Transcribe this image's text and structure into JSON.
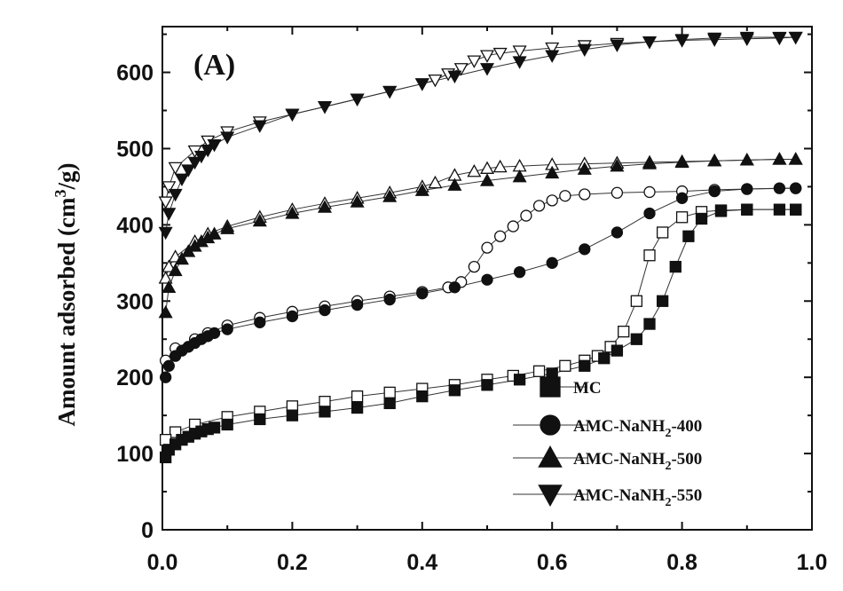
{
  "chart_data": {
    "type": "line",
    "panel_label": "(A)",
    "ylabel": "Amount adsorbed (cm",
    "ylabel_sup": "3",
    "ylabel_unit": "/g)",
    "xlabel": "",
    "xlim": [
      0.0,
      1.0
    ],
    "ylim": [
      0,
      660
    ],
    "x_ticks": [
      "0.0",
      "0.2",
      "0.4",
      "0.6",
      "0.8",
      "1.0"
    ],
    "y_ticks": [
      "0",
      "100",
      "200",
      "300",
      "400",
      "500",
      "600"
    ],
    "legend_position": "bottom-right",
    "series": [
      {
        "name": "MC",
        "name_main": "MC",
        "name_sub": "",
        "name_tail": "",
        "marker": "square",
        "adsorption": [
          [
            0.005,
            95
          ],
          [
            0.01,
            105
          ],
          [
            0.02,
            112
          ],
          [
            0.03,
            118
          ],
          [
            0.04,
            122
          ],
          [
            0.05,
            126
          ],
          [
            0.06,
            129
          ],
          [
            0.07,
            132
          ],
          [
            0.08,
            134
          ],
          [
            0.1,
            138
          ],
          [
            0.15,
            145
          ],
          [
            0.2,
            150
          ],
          [
            0.25,
            155
          ],
          [
            0.3,
            160
          ],
          [
            0.35,
            166
          ],
          [
            0.4,
            175
          ],
          [
            0.45,
            183
          ],
          [
            0.5,
            190
          ],
          [
            0.55,
            197
          ],
          [
            0.6,
            205
          ],
          [
            0.65,
            215
          ],
          [
            0.68,
            225
          ],
          [
            0.7,
            235
          ],
          [
            0.73,
            250
          ],
          [
            0.75,
            270
          ],
          [
            0.77,
            300
          ],
          [
            0.79,
            345
          ],
          [
            0.81,
            385
          ],
          [
            0.83,
            408
          ],
          [
            0.86,
            418
          ],
          [
            0.9,
            420
          ],
          [
            0.95,
            420
          ],
          [
            0.975,
            420
          ]
        ],
        "desorption": [
          [
            0.975,
            420
          ],
          [
            0.9,
            420
          ],
          [
            0.86,
            419
          ],
          [
            0.83,
            417
          ],
          [
            0.8,
            410
          ],
          [
            0.77,
            390
          ],
          [
            0.75,
            360
          ],
          [
            0.73,
            300
          ],
          [
            0.71,
            260
          ],
          [
            0.69,
            240
          ],
          [
            0.67,
            228
          ],
          [
            0.65,
            222
          ],
          [
            0.62,
            215
          ],
          [
            0.58,
            208
          ],
          [
            0.54,
            202
          ],
          [
            0.5,
            197
          ],
          [
            0.45,
            190
          ],
          [
            0.4,
            185
          ],
          [
            0.35,
            180
          ],
          [
            0.3,
            175
          ],
          [
            0.25,
            168
          ],
          [
            0.2,
            162
          ],
          [
            0.15,
            155
          ],
          [
            0.1,
            148
          ],
          [
            0.05,
            138
          ],
          [
            0.02,
            128
          ],
          [
            0.005,
            118
          ]
        ]
      },
      {
        "name": "AMC-NaNH2-400",
        "name_main": "AMC-NaNH",
        "name_sub": "2",
        "name_tail": "-400",
        "marker": "circle",
        "adsorption": [
          [
            0.005,
            200
          ],
          [
            0.01,
            215
          ],
          [
            0.02,
            228
          ],
          [
            0.03,
            235
          ],
          [
            0.04,
            240
          ],
          [
            0.05,
            245
          ],
          [
            0.06,
            250
          ],
          [
            0.07,
            254
          ],
          [
            0.08,
            258
          ],
          [
            0.1,
            263
          ],
          [
            0.15,
            272
          ],
          [
            0.2,
            280
          ],
          [
            0.25,
            288
          ],
          [
            0.3,
            295
          ],
          [
            0.35,
            302
          ],
          [
            0.4,
            310
          ],
          [
            0.45,
            318
          ],
          [
            0.5,
            328
          ],
          [
            0.55,
            338
          ],
          [
            0.6,
            350
          ],
          [
            0.65,
            368
          ],
          [
            0.7,
            390
          ],
          [
            0.75,
            415
          ],
          [
            0.8,
            435
          ],
          [
            0.85,
            444
          ],
          [
            0.9,
            447
          ],
          [
            0.95,
            448
          ],
          [
            0.975,
            448
          ]
        ],
        "desorption": [
          [
            0.975,
            448
          ],
          [
            0.9,
            447
          ],
          [
            0.85,
            446
          ],
          [
            0.8,
            444
          ],
          [
            0.75,
            443
          ],
          [
            0.7,
            442
          ],
          [
            0.65,
            440
          ],
          [
            0.62,
            438
          ],
          [
            0.6,
            432
          ],
          [
            0.58,
            425
          ],
          [
            0.56,
            412
          ],
          [
            0.54,
            398
          ],
          [
            0.52,
            385
          ],
          [
            0.5,
            370
          ],
          [
            0.48,
            345
          ],
          [
            0.46,
            325
          ],
          [
            0.44,
            318
          ],
          [
            0.4,
            312
          ],
          [
            0.35,
            306
          ],
          [
            0.3,
            300
          ],
          [
            0.25,
            293
          ],
          [
            0.2,
            286
          ],
          [
            0.15,
            278
          ],
          [
            0.1,
            268
          ],
          [
            0.07,
            258
          ],
          [
            0.05,
            250
          ],
          [
            0.02,
            238
          ],
          [
            0.005,
            222
          ]
        ]
      },
      {
        "name": "AMC-NaNH2-500",
        "name_main": "AMC-NaNH",
        "name_sub": "2",
        "name_tail": "-500",
        "marker": "triangle-up",
        "adsorption": [
          [
            0.005,
            285
          ],
          [
            0.01,
            318
          ],
          [
            0.02,
            340
          ],
          [
            0.03,
            355
          ],
          [
            0.04,
            365
          ],
          [
            0.05,
            372
          ],
          [
            0.06,
            378
          ],
          [
            0.07,
            383
          ],
          [
            0.08,
            388
          ],
          [
            0.1,
            395
          ],
          [
            0.15,
            405
          ],
          [
            0.2,
            415
          ],
          [
            0.25,
            423
          ],
          [
            0.3,
            430
          ],
          [
            0.35,
            437
          ],
          [
            0.4,
            445
          ],
          [
            0.45,
            452
          ],
          [
            0.5,
            458
          ],
          [
            0.55,
            463
          ],
          [
            0.6,
            468
          ],
          [
            0.65,
            473
          ],
          [
            0.7,
            477
          ],
          [
            0.75,
            480
          ],
          [
            0.8,
            482
          ],
          [
            0.85,
            484
          ],
          [
            0.9,
            485
          ],
          [
            0.95,
            486
          ],
          [
            0.975,
            486
          ]
        ],
        "desorption": [
          [
            0.975,
            486
          ],
          [
            0.95,
            486
          ],
          [
            0.9,
            485
          ],
          [
            0.85,
            484
          ],
          [
            0.8,
            483
          ],
          [
            0.75,
            482
          ],
          [
            0.7,
            481
          ],
          [
            0.65,
            480
          ],
          [
            0.6,
            479
          ],
          [
            0.55,
            477
          ],
          [
            0.52,
            476
          ],
          [
            0.5,
            474
          ],
          [
            0.48,
            470
          ],
          [
            0.45,
            465
          ],
          [
            0.42,
            455
          ],
          [
            0.4,
            450
          ],
          [
            0.35,
            442
          ],
          [
            0.3,
            435
          ],
          [
            0.25,
            428
          ],
          [
            0.2,
            420
          ],
          [
            0.15,
            410
          ],
          [
            0.1,
            398
          ],
          [
            0.07,
            388
          ],
          [
            0.05,
            378
          ],
          [
            0.02,
            358
          ],
          [
            0.01,
            345
          ],
          [
            0.005,
            330
          ]
        ]
      },
      {
        "name": "AMC-NaNH2-550",
        "name_main": "AMC-NaNH",
        "name_sub": "2",
        "name_tail": "-550",
        "marker": "triangle-down",
        "adsorption": [
          [
            0.005,
            390
          ],
          [
            0.01,
            415
          ],
          [
            0.02,
            440
          ],
          [
            0.03,
            460
          ],
          [
            0.04,
            472
          ],
          [
            0.05,
            482
          ],
          [
            0.06,
            490
          ],
          [
            0.07,
            498
          ],
          [
            0.08,
            505
          ],
          [
            0.1,
            515
          ],
          [
            0.15,
            530
          ],
          [
            0.2,
            545
          ],
          [
            0.25,
            555
          ],
          [
            0.3,
            565
          ],
          [
            0.35,
            575
          ],
          [
            0.4,
            585
          ],
          [
            0.45,
            595
          ],
          [
            0.5,
            605
          ],
          [
            0.55,
            614
          ],
          [
            0.6,
            622
          ],
          [
            0.65,
            630
          ],
          [
            0.7,
            636
          ],
          [
            0.75,
            640
          ],
          [
            0.8,
            643
          ],
          [
            0.85,
            645
          ],
          [
            0.9,
            646
          ],
          [
            0.95,
            646
          ],
          [
            0.975,
            646
          ]
        ],
        "desorption": [
          [
            0.975,
            646
          ],
          [
            0.95,
            645
          ],
          [
            0.9,
            644
          ],
          [
            0.85,
            643
          ],
          [
            0.8,
            642
          ],
          [
            0.75,
            640
          ],
          [
            0.7,
            638
          ],
          [
            0.65,
            635
          ],
          [
            0.6,
            632
          ],
          [
            0.55,
            628
          ],
          [
            0.52,
            625
          ],
          [
            0.5,
            622
          ],
          [
            0.48,
            615
          ],
          [
            0.46,
            605
          ],
          [
            0.44,
            598
          ],
          [
            0.42,
            590
          ],
          [
            0.4,
            585
          ],
          [
            0.35,
            575
          ],
          [
            0.3,
            565
          ],
          [
            0.25,
            555
          ],
          [
            0.2,
            545
          ],
          [
            0.15,
            535
          ],
          [
            0.1,
            522
          ],
          [
            0.07,
            510
          ],
          [
            0.05,
            497
          ],
          [
            0.02,
            475
          ],
          [
            0.01,
            450
          ],
          [
            0.005,
            430
          ]
        ]
      }
    ]
  }
}
